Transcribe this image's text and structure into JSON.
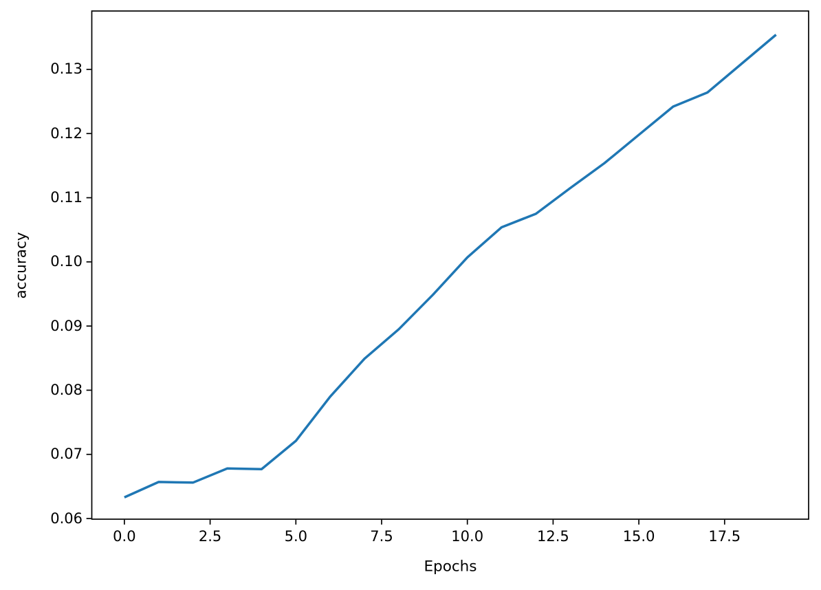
{
  "figure": {
    "background_color": "#ffffff",
    "axis_color": "#000000"
  },
  "chart_data": {
    "type": "line",
    "title": "",
    "xlabel": "Epochs",
    "ylabel": "accuracy",
    "x": [
      0,
      1,
      2,
      3,
      4,
      5,
      6,
      7,
      8,
      9,
      10,
      11,
      12,
      13,
      14,
      15,
      16,
      17,
      18,
      19
    ],
    "series": [
      {
        "name": "accuracy",
        "color": "#1f77b4",
        "values": [
          0.0633,
          0.0657,
          0.0656,
          0.0678,
          0.0677,
          0.0721,
          0.079,
          0.0849,
          0.0895,
          0.0949,
          0.1007,
          0.1054,
          0.1075,
          0.1115,
          0.1154,
          0.1198,
          0.1242,
          0.1264,
          0.1309,
          0.1354
        ]
      }
    ],
    "xlim": [
      -0.95,
      19.95
    ],
    "ylim": [
      0.0599,
      0.1391
    ],
    "xticks": [
      0,
      2.5,
      5,
      7.5,
      10,
      12.5,
      15,
      17.5
    ],
    "xtick_labels": [
      "0.0",
      "2.5",
      "5.0",
      "7.5",
      "10.0",
      "12.5",
      "15.0",
      "17.5"
    ],
    "yticks": [
      0.06,
      0.07,
      0.08,
      0.09,
      0.1,
      0.11,
      0.12,
      0.13
    ],
    "ytick_labels": [
      "0.06",
      "0.07",
      "0.08",
      "0.09",
      "0.10",
      "0.11",
      "0.12",
      "0.13"
    ],
    "grid": false,
    "legend": false,
    "markers": false
  }
}
